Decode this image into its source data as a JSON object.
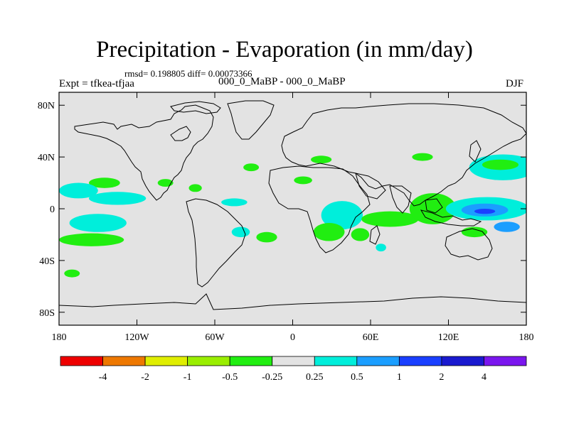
{
  "title": "Precipitation - Evaporation (in mm/day)",
  "stats_text": "rmsd= 0.198805 diff= 0.00073366",
  "experiment_label": "Expt = tfkea-tfjaa",
  "subtitle": "000_0_MaBP - 000_0_MaBP",
  "season": "DJF",
  "map": {
    "projection": "cylindrical equidistant",
    "lon_range": [
      -180,
      180
    ],
    "lat_range": [
      -90,
      90
    ],
    "x_ticks": [
      {
        "lon": -180,
        "label": "180"
      },
      {
        "lon": -120,
        "label": "120W"
      },
      {
        "lon": -60,
        "label": "60W"
      },
      {
        "lon": 0,
        "label": "0"
      },
      {
        "lon": 60,
        "label": "60E"
      },
      {
        "lon": 120,
        "label": "120E"
      },
      {
        "lon": 180,
        "label": "180"
      }
    ],
    "y_ticks": [
      {
        "lat": 80,
        "label": "80N"
      },
      {
        "lat": 40,
        "label": "40N"
      },
      {
        "lat": 0,
        "label": "0"
      },
      {
        "lat": -40,
        "label": "40S"
      },
      {
        "lat": -80,
        "label": "80S"
      }
    ],
    "background_color": "#e3e3e3",
    "coastline_color": "#000000",
    "anomaly_patches": [
      {
        "name": "patch-north-pacific-east",
        "lon": -145,
        "lat": 20,
        "rlon": 12,
        "rlat": 4,
        "color": "#21ee11"
      },
      {
        "name": "patch-tropical-pacific-west",
        "lon": -165,
        "lat": 14,
        "rlon": 15,
        "rlat": 6,
        "color": "#00eedb"
      },
      {
        "name": "patch-tropical-pacific-mid",
        "lon": -135,
        "lat": 8,
        "rlon": 22,
        "rlat": 5,
        "color": "#00eedb"
      },
      {
        "name": "patch-south-pacific-blue",
        "lon": -150,
        "lat": -11,
        "rlon": 12,
        "rlat": 4,
        "color": "#1b9eff"
      },
      {
        "name": "patch-south-pacific-cyan",
        "lon": -150,
        "lat": -11,
        "rlon": 22,
        "rlat": 7,
        "color": "#00eedb"
      },
      {
        "name": "patch-south-pacific-green",
        "lon": -155,
        "lat": -24,
        "rlon": 25,
        "rlat": 5,
        "color": "#21ee11"
      },
      {
        "name": "patch-southwest-pacific",
        "lon": -170,
        "lat": -50,
        "rlon": 6,
        "rlat": 3,
        "color": "#21ee11"
      },
      {
        "name": "patch-gulf-of-mexico",
        "lon": -98,
        "lat": 20,
        "rlon": 6,
        "rlat": 3,
        "color": "#21ee11"
      },
      {
        "name": "patch-caribbean",
        "lon": -75,
        "lat": 16,
        "rlon": 5,
        "rlat": 3,
        "color": "#21ee11"
      },
      {
        "name": "patch-tropical-atlantic",
        "lon": -45,
        "lat": 5,
        "rlon": 10,
        "rlat": 3,
        "color": "#00eedb"
      },
      {
        "name": "patch-north-atlantic",
        "lon": -32,
        "lat": 32,
        "rlon": 6,
        "rlat": 3,
        "color": "#21ee11"
      },
      {
        "name": "patch-south-atlantic-west",
        "lon": -40,
        "lat": -18,
        "rlon": 7,
        "rlat": 4,
        "color": "#00eedb"
      },
      {
        "name": "patch-south-atlantic-green",
        "lon": -20,
        "lat": -22,
        "rlon": 8,
        "rlat": 4,
        "color": "#21ee11"
      },
      {
        "name": "patch-mediterranean",
        "lon": 22,
        "lat": 38,
        "rlon": 8,
        "rlat": 3,
        "color": "#21ee11"
      },
      {
        "name": "patch-africa-north",
        "lon": 8,
        "lat": 22,
        "rlon": 7,
        "rlat": 3,
        "color": "#21ee11"
      },
      {
        "name": "patch-east-africa-blue",
        "lon": 38,
        "lat": -5,
        "rlon": 9,
        "rlat": 7,
        "color": "#1b9eff"
      },
      {
        "name": "patch-east-africa-cyan",
        "lon": 38,
        "lat": -5,
        "rlon": 16,
        "rlat": 11,
        "color": "#00eedb"
      },
      {
        "name": "patch-southern-africa",
        "lon": 28,
        "lat": -18,
        "rlon": 12,
        "rlat": 7,
        "color": "#21ee11"
      },
      {
        "name": "patch-madagascar",
        "lon": 52,
        "lat": -20,
        "rlon": 7,
        "rlat": 5,
        "color": "#21ee11"
      },
      {
        "name": "patch-indian-ocean-yellow",
        "lon": 80,
        "lat": -10,
        "rlon": 10,
        "rlat": 3,
        "color": "#c7ee00"
      },
      {
        "name": "patch-indian-ocean",
        "lon": 75,
        "lat": -8,
        "rlon": 22,
        "rlat": 6,
        "color": "#21ee11"
      },
      {
        "name": "patch-maritime-continent-lime",
        "lon": 108,
        "lat": -2,
        "rlon": 10,
        "rlat": 4,
        "color": "#9aee00"
      },
      {
        "name": "patch-maritime-continent",
        "lon": 108,
        "lat": 0,
        "rlon": 18,
        "rlat": 12,
        "color": "#21ee11"
      },
      {
        "name": "patch-east-asia",
        "lon": 100,
        "lat": 40,
        "rlon": 8,
        "rlat": 3,
        "color": "#21ee11"
      },
      {
        "name": "patch-northwest-pacific-cyan",
        "lon": 162,
        "lat": 32,
        "rlon": 26,
        "rlat": 10,
        "color": "#00eedb"
      },
      {
        "name": "patch-northwest-pacific-green",
        "lon": 160,
        "lat": 34,
        "rlon": 14,
        "rlat": 4,
        "color": "#21ee11"
      },
      {
        "name": "patch-west-pacific-cyan",
        "lon": 150,
        "lat": 0,
        "rlon": 32,
        "rlat": 9,
        "color": "#00eedb"
      },
      {
        "name": "patch-west-pacific-blue",
        "lon": 148,
        "lat": -1,
        "rlon": 18,
        "rlat": 5,
        "color": "#1b9eff"
      },
      {
        "name": "patch-west-pacific-navy",
        "lon": 148,
        "lat": -2,
        "rlon": 8,
        "rlat": 2,
        "color": "#1a3fff"
      },
      {
        "name": "patch-southwest-pacific-blue",
        "lon": 165,
        "lat": -14,
        "rlon": 10,
        "rlat": 4,
        "color": "#1b9eff"
      },
      {
        "name": "patch-australia-green",
        "lon": 140,
        "lat": -18,
        "rlon": 10,
        "rlat": 4,
        "color": "#21ee11"
      },
      {
        "name": "patch-south-indian",
        "lon": 68,
        "lat": -30,
        "rlon": 4,
        "rlat": 3,
        "color": "#00eedb"
      }
    ]
  },
  "colorbar": {
    "colors": [
      "#ee0000",
      "#ee7800",
      "#e0ee00",
      "#9aee00",
      "#21ee11",
      "#e3e3e3",
      "#00eedb",
      "#1b9eff",
      "#1a3fff",
      "#1a1acf",
      "#7a16ee"
    ],
    "labels": [
      "-4",
      "-2",
      "-1",
      "-0.5",
      "-0.25",
      "0.25",
      "0.5",
      "1",
      "2",
      "4"
    ]
  }
}
